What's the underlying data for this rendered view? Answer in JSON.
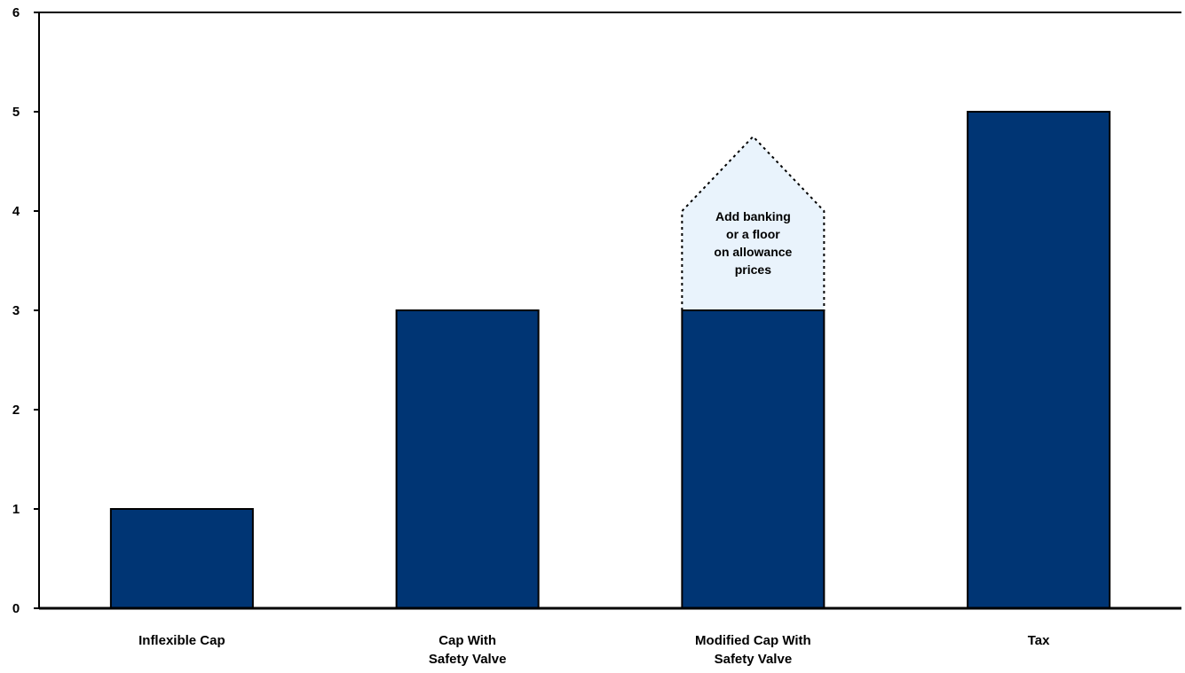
{
  "chart_data": {
    "type": "bar",
    "categories": [
      [
        "Inflexible Cap"
      ],
      [
        "Cap With",
        "Safety Valve"
      ],
      [
        "Modified Cap With",
        "Safety Valve"
      ],
      [
        "Tax"
      ]
    ],
    "values": [
      1,
      3,
      3,
      5
    ],
    "ylim": [
      0,
      6
    ],
    "yticks": [
      0,
      1,
      2,
      3,
      4,
      5,
      6
    ],
    "title": "",
    "xlabel": "",
    "ylabel": "",
    "grid": false,
    "legend": "none",
    "colors": {
      "bar_fill": "#003574",
      "bar_stroke": "#000000",
      "annotation_fill": "#e9f3fc",
      "annotation_stroke": "#000000",
      "axis": "#000000"
    },
    "annotation": {
      "category_index": 2,
      "box_from": 3,
      "box_to": 4,
      "peak": 4.75,
      "lines": [
        "Add banking",
        "or a floor",
        "on allowance",
        "prices"
      ]
    }
  }
}
